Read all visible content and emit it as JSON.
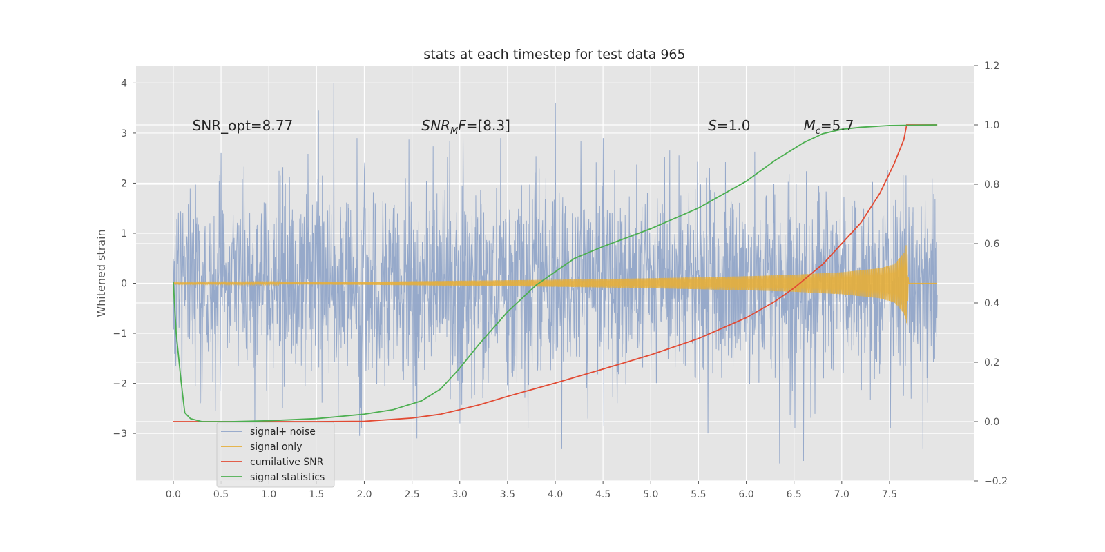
{
  "chart_data": {
    "type": "line",
    "title": "stats at each timestep for test data 965",
    "ylabel": "Whitened strain",
    "xlabel": "",
    "xlim": [
      -0.39,
      8.39
    ],
    "ylim": [
      -3.95,
      4.35
    ],
    "y2lim": [
      -0.2,
      1.2
    ],
    "grid": true,
    "x_ticks": [
      "0.0",
      "0.5",
      "1.0",
      "1.5",
      "2.0",
      "2.5",
      "3.0",
      "3.5",
      "4.0",
      "4.5",
      "5.0",
      "5.5",
      "6.0",
      "6.5",
      "7.0",
      "7.5"
    ],
    "y_ticks": [
      "4",
      "3",
      "2",
      "1",
      "0",
      "−1",
      "−2",
      "−3"
    ],
    "y2_ticks": [
      "1.2",
      "1.0",
      "0.8",
      "0.6",
      "0.4",
      "0.2",
      "0.0",
      "−0.2"
    ],
    "annotations": [
      {
        "text": "SNR_opt=8.77",
        "x": 0.2,
        "y": 3.15
      },
      {
        "text": "SNR_MF=[8.3]",
        "x": 2.6,
        "y": 3.15
      },
      {
        "text": "S=1.0",
        "x": 5.6,
        "y": 3.15
      },
      {
        "text": "M_c=5.7",
        "x": 6.6,
        "y": 3.15
      }
    ],
    "series": [
      {
        "name": "signal+ noise",
        "axis": "left",
        "description_style": "noise",
        "x_range": [
          0.0,
          8.0
        ],
        "amplitude_typical": 1.5,
        "peaks": [
          {
            "x": 1.68,
            "y": 4.0
          },
          {
            "x": 1.52,
            "y": 3.45
          },
          {
            "x": 4.0,
            "y": 3.6
          },
          {
            "x": 6.35,
            "y": -3.6
          },
          {
            "x": 6.6,
            "y": -3.55
          },
          {
            "x": 4.07,
            "y": -3.3
          },
          {
            "x": 7.85,
            "y": -3.3
          },
          {
            "x": 2.55,
            "y": -3.1
          },
          {
            "x": 1.95,
            "y": -3.05
          },
          {
            "x": 5.6,
            "y": -3.0
          },
          {
            "x": 3.0,
            "y": -2.8
          },
          {
            "x": 0.02,
            "y": 0.95
          }
        ]
      },
      {
        "name": "signal only",
        "axis": "left",
        "description_style": "chirp",
        "x_range": [
          0.0,
          8.0
        ],
        "merger_x": 7.68,
        "envelope": [
          [
            0.0,
            0.015
          ],
          [
            1.0,
            0.02
          ],
          [
            2.0,
            0.03
          ],
          [
            3.0,
            0.05
          ],
          [
            4.0,
            0.07
          ],
          [
            5.0,
            0.1
          ],
          [
            6.0,
            0.14
          ],
          [
            6.5,
            0.17
          ],
          [
            7.0,
            0.22
          ],
          [
            7.4,
            0.3
          ],
          [
            7.55,
            0.38
          ],
          [
            7.65,
            0.6
          ],
          [
            7.68,
            0.8
          ],
          [
            7.7,
            0.0
          ],
          [
            8.0,
            0.0
          ]
        ]
      },
      {
        "name": "cumilative SNR",
        "axis": "right",
        "x": [
          0.0,
          0.5,
          1.0,
          1.5,
          2.0,
          2.5,
          2.8,
          3.0,
          3.2,
          3.5,
          3.8,
          4.0,
          4.5,
          5.0,
          5.5,
          6.0,
          6.3,
          6.5,
          6.8,
          7.0,
          7.2,
          7.4,
          7.55,
          7.65,
          7.68,
          8.0
        ],
        "values": [
          0.0,
          0.0,
          0.0,
          0.0,
          0.001,
          0.012,
          0.025,
          0.04,
          0.056,
          0.085,
          0.112,
          0.13,
          0.177,
          0.225,
          0.28,
          0.35,
          0.405,
          0.45,
          0.53,
          0.6,
          0.67,
          0.77,
          0.87,
          0.95,
          1.0,
          1.0
        ]
      },
      {
        "name": "signal statistics",
        "axis": "right",
        "x": [
          0.0,
          0.03,
          0.08,
          0.12,
          0.18,
          0.3,
          0.6,
          1.0,
          1.5,
          2.0,
          2.3,
          2.6,
          2.8,
          3.0,
          3.2,
          3.5,
          3.8,
          4.0,
          4.2,
          4.5,
          5.0,
          5.5,
          6.0,
          6.3,
          6.6,
          6.8,
          7.0,
          7.2,
          7.5,
          8.0
        ],
        "values": [
          0.47,
          0.3,
          0.14,
          0.03,
          0.01,
          0.0,
          0.0,
          0.003,
          0.01,
          0.025,
          0.04,
          0.07,
          0.11,
          0.18,
          0.26,
          0.37,
          0.46,
          0.505,
          0.55,
          0.59,
          0.65,
          0.72,
          0.81,
          0.88,
          0.94,
          0.97,
          0.985,
          0.992,
          0.998,
          1.0
        ]
      }
    ],
    "legend": {
      "placement": "lower-left",
      "entries": [
        {
          "label": "signal+ noise",
          "color": "#8fa4c8"
        },
        {
          "label": "signal only",
          "color": "#e5ae38"
        },
        {
          "label": "cumilative SNR",
          "color": "#e24a33"
        },
        {
          "label": "signal statistics",
          "color": "#4caf50"
        }
      ]
    },
    "colors": {
      "plot_background": "#e5e5e5",
      "grid": "#ffffff",
      "noise": "#8fa4c8",
      "signal": "#e5ae38",
      "snr": "#e24a33",
      "stats": "#4caf50"
    }
  }
}
